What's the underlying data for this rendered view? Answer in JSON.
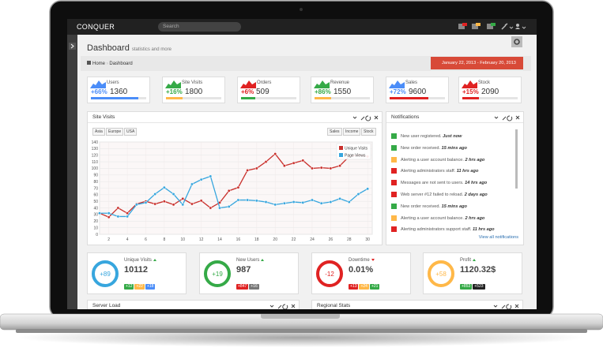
{
  "nav": {
    "logo": "CONQUER",
    "search": "Search"
  },
  "header": {
    "title": "Dashboard",
    "subtitle": "statistics and more"
  },
  "breadcrumb": [
    "Home",
    "Dashboard"
  ],
  "date_range": "January 22, 2013 - February 20, 2013",
  "stats": [
    {
      "label": "Users",
      "change": "+66%",
      "value": 1360,
      "color": "#4b8df8",
      "bar": "#4b8df8"
    },
    {
      "label": "Site Visits",
      "change": "+16%",
      "value": 1800,
      "color": "#35aa47",
      "bar": "#ffb848"
    },
    {
      "label": "Orders",
      "change": "+6%",
      "value": 509,
      "color": "#e02222",
      "bar": "#35aa47"
    },
    {
      "label": "Revenue",
      "change": "+86%",
      "value": 1550,
      "color": "#35aa47",
      "bar": "#ffb848"
    },
    {
      "label": "Sales",
      "change": "+72%",
      "value": 9600,
      "color": "#4b8df8",
      "bar": "#e02222"
    },
    {
      "label": "Stock",
      "change": "+15%",
      "value": 2090,
      "color": "#e02222",
      "bar": "#e02222"
    }
  ],
  "site_visits": {
    "title": "Site Visits",
    "tabs_left": [
      "Asia",
      "Europe",
      "USA"
    ],
    "tabs_right": [
      "Sales",
      "Income",
      "Stock"
    ]
  },
  "chart_data": {
    "type": "line",
    "x": [
      1,
      2,
      3,
      4,
      5,
      6,
      7,
      8,
      9,
      10,
      11,
      12,
      13,
      14,
      15,
      16,
      17,
      18,
      19,
      20,
      21,
      22,
      23,
      24,
      25,
      26,
      27,
      28,
      29,
      30
    ],
    "series": [
      {
        "name": "Unique Visits",
        "color": "#c9302c",
        "values": [
          32,
          26,
          40,
          32,
          46,
          50,
          46,
          50,
          45,
          54,
          46,
          51,
          40,
          48,
          66,
          71,
          97,
          100,
          110,
          122,
          104,
          108,
          112,
          100,
          101,
          100,
          104,
          118,
          120,
          118
        ]
      },
      {
        "name": "Page Views",
        "color": "#37a6de",
        "values": [
          32,
          32,
          27,
          27,
          45,
          48,
          61,
          71,
          61,
          45,
          76,
          83,
          88,
          40,
          42,
          52,
          52,
          51,
          49,
          45,
          47,
          49,
          48,
          52,
          47,
          49,
          54,
          49,
          61,
          69
        ]
      }
    ],
    "xlim": [
      1,
      30.5
    ],
    "ylim": [
      0,
      140
    ],
    "xticks": [
      2,
      4,
      6,
      8,
      10,
      12,
      14,
      16,
      18,
      20,
      22,
      24,
      26,
      28,
      30
    ],
    "yticks": [
      0,
      10,
      20,
      30,
      40,
      50,
      60,
      70,
      80,
      90,
      100,
      110,
      120,
      130,
      140
    ],
    "grid": true,
    "legend": "top-right"
  },
  "notifications": {
    "title": "Notifications",
    "footer": "View all notifications",
    "items": [
      {
        "text": "New user registered.",
        "time": "Just now",
        "color": "#35aa47"
      },
      {
        "text": "New order received.",
        "time": "15 mins ago",
        "color": "#35aa47"
      },
      {
        "text": "Alerting a user account balance.",
        "time": "2 hrs ago",
        "color": "#ffb848"
      },
      {
        "text": "Alerting administrators staff.",
        "time": "11 hrs ago",
        "color": "#e02222"
      },
      {
        "text": "Messages are not sent to users.",
        "time": "14 hrs ago",
        "color": "#e02222"
      },
      {
        "text": "Web server #12 failed to reload.",
        "time": "2 days ago",
        "color": "#e02222"
      },
      {
        "text": "New order received.",
        "time": "15 mins ago",
        "color": "#35aa47"
      },
      {
        "text": "Alerting a user account balance.",
        "time": "2 hrs ago",
        "color": "#ffb848"
      },
      {
        "text": "Alerting administrators support staff.",
        "time": "11 hrs ago",
        "color": "#e02222"
      }
    ]
  },
  "circles": [
    {
      "badge": "+89",
      "label": "Unique Visits",
      "value": "10112",
      "color": "#37a6de",
      "trend": "up",
      "chips": [
        {
          "text": "+12",
          "color": "#35aa47"
        },
        {
          "text": "+22",
          "color": "#ffb848"
        },
        {
          "text": "+18",
          "color": "#4b8df8"
        }
      ]
    },
    {
      "badge": "+19",
      "label": "New Users",
      "value": "987",
      "color": "#35aa47",
      "trend": "up",
      "chips": [
        {
          "text": "+847",
          "color": "#e02222"
        },
        {
          "text": "+16",
          "color": "#777777"
        }
      ]
    },
    {
      "badge": "-12",
      "label": "Downtime",
      "value": "0.01%",
      "color": "#e02222",
      "trend": "down",
      "chips": [
        {
          "text": "+13",
          "color": "#e02222"
        },
        {
          "text": "+24",
          "color": "#ffb848"
        },
        {
          "text": "+21",
          "color": "#35aa47"
        }
      ]
    },
    {
      "badge": "+58",
      "label": "Profit",
      "value": "1120.32$",
      "color": "#ffb848",
      "trend": "up",
      "chips": [
        {
          "text": "+853",
          "color": "#35aa47"
        },
        {
          "text": "+523",
          "color": "#222222"
        }
      ]
    }
  ],
  "bottom_portlets": [
    "Server Load",
    "Regional Stats"
  ]
}
